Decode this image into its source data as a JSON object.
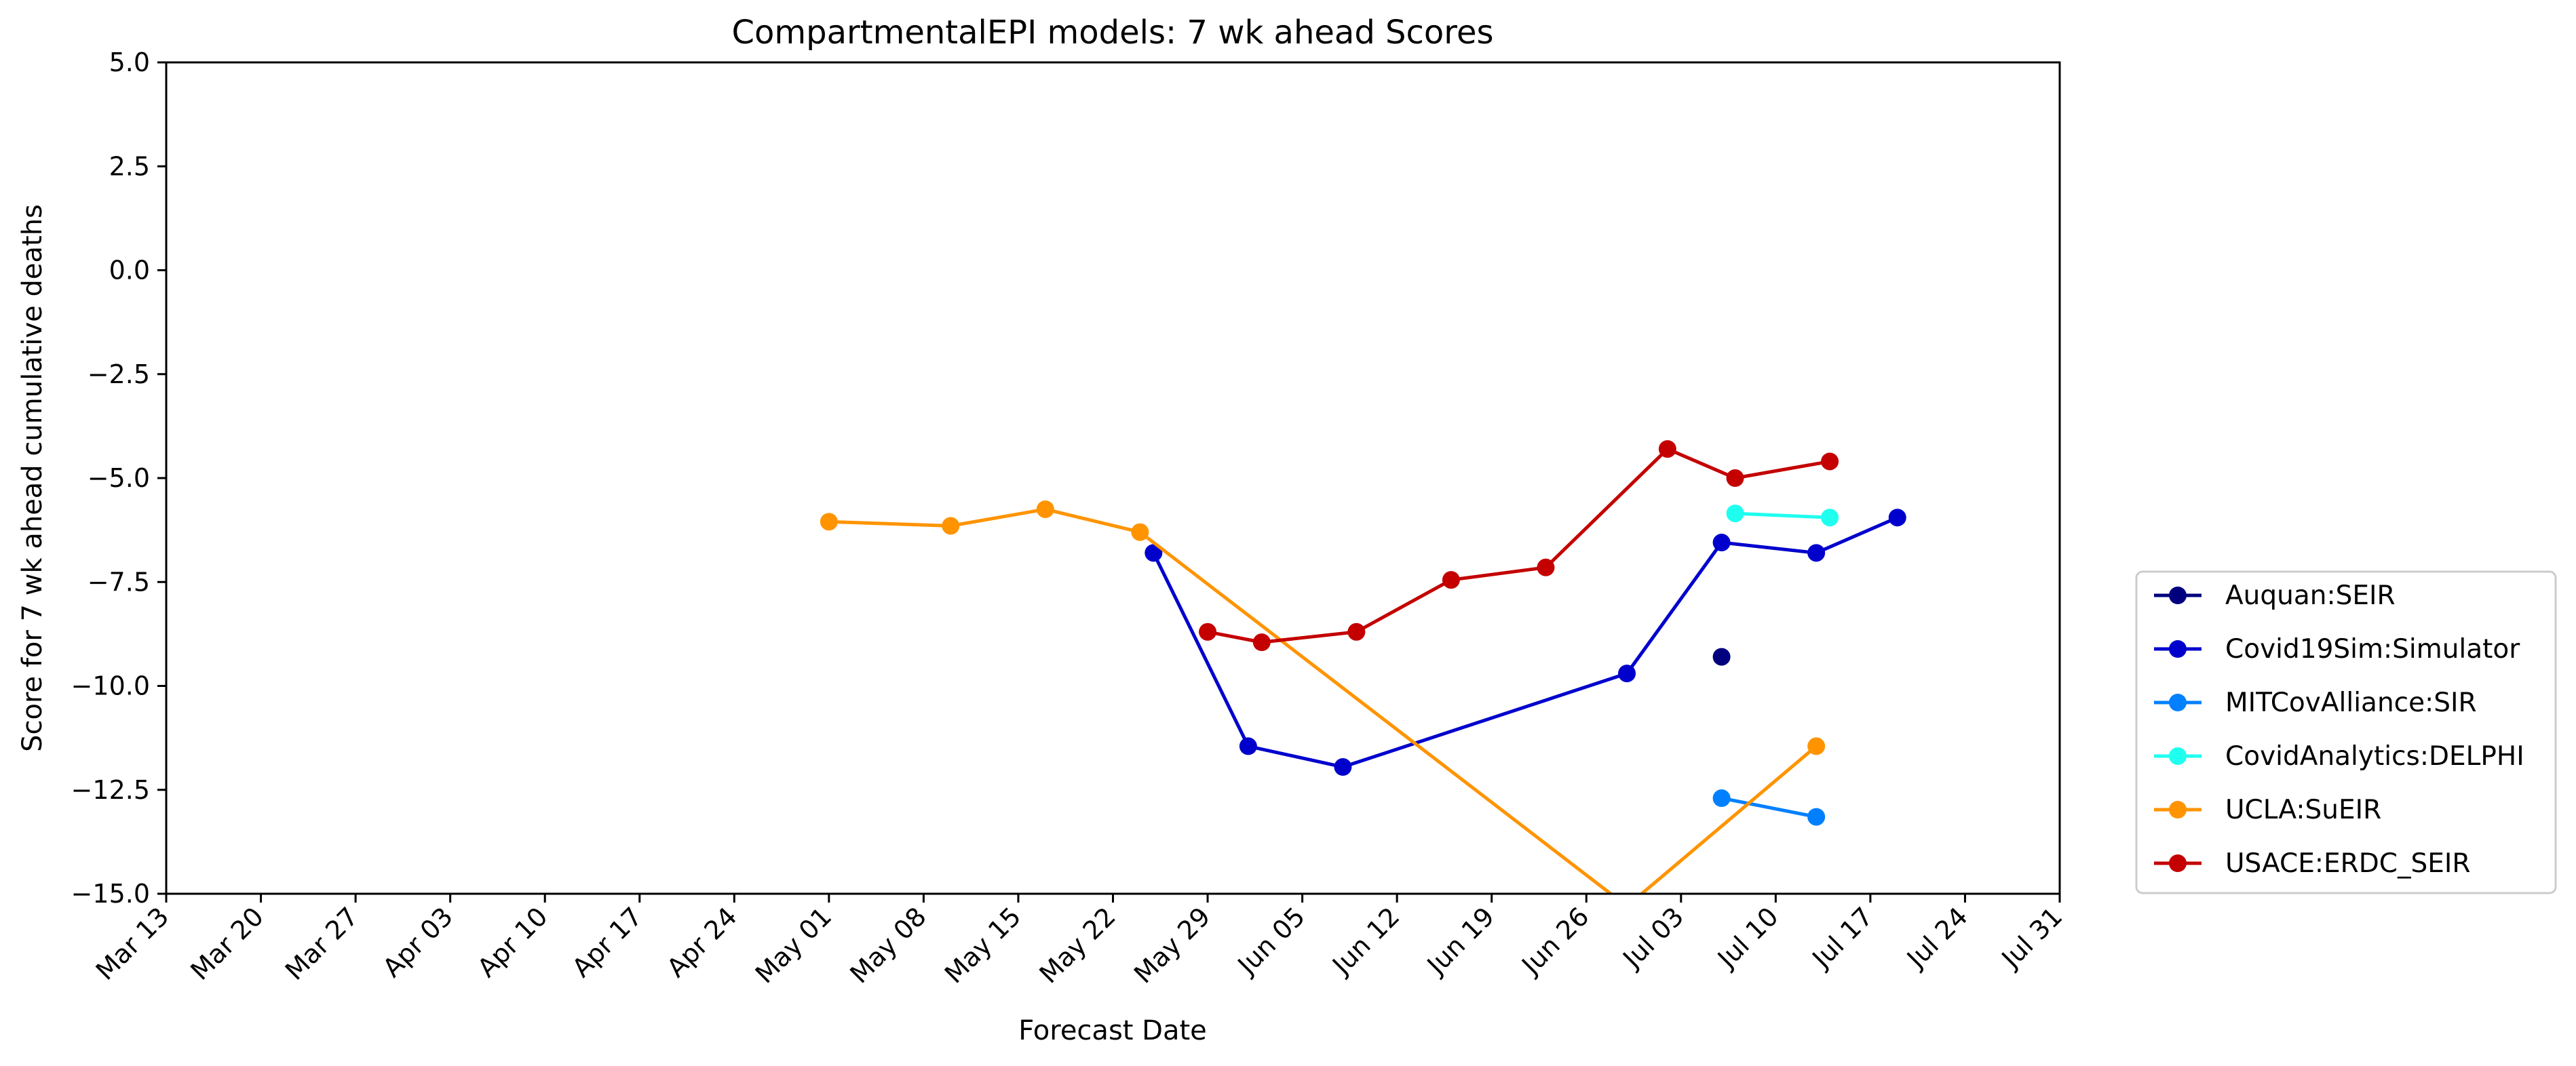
{
  "chart_data": {
    "type": "line",
    "title": "CompartmentalEPI models: 7 wk ahead Scores",
    "xlabel": "Forecast Date",
    "ylabel": "Score for 7 wk ahead cumulative deaths",
    "xlim": [
      "2020-03-13",
      "2020-07-31"
    ],
    "ylim": [
      -15.0,
      5.0
    ],
    "x_ticks": [
      "2020-03-13",
      "2020-03-20",
      "2020-03-27",
      "2020-04-03",
      "2020-04-10",
      "2020-04-17",
      "2020-04-24",
      "2020-05-01",
      "2020-05-08",
      "2020-05-15",
      "2020-05-22",
      "2020-05-29",
      "2020-06-05",
      "2020-06-12",
      "2020-06-19",
      "2020-06-26",
      "2020-07-03",
      "2020-07-10",
      "2020-07-17",
      "2020-07-24",
      "2020-07-31"
    ],
    "x_tick_labels": [
      "Mar 13",
      "Mar 20",
      "Mar 27",
      "Apr 03",
      "Apr 10",
      "Apr 17",
      "Apr 24",
      "May 01",
      "May 08",
      "May 15",
      "May 22",
      "May 29",
      "Jun 05",
      "Jun 12",
      "Jun 19",
      "Jun 26",
      "Jul 03",
      "Jul 10",
      "Jul 17",
      "Jul 24",
      "Jul 31"
    ],
    "y_ticks": [
      5.0,
      2.5,
      0.0,
      -2.5,
      -5.0,
      -7.5,
      -10.0,
      -12.5,
      -15.0
    ],
    "y_tick_labels": [
      "5.0",
      "2.5",
      "0.0",
      "−2.5",
      "−5.0",
      "−7.5",
      "−10.0",
      "−12.5",
      "−15.0"
    ],
    "grid": false,
    "legend_position": "right",
    "series": [
      {
        "name": "Auquan:SEIR",
        "color": "#00007f",
        "x": [
          "2020-07-06"
        ],
        "y": [
          -9.3
        ]
      },
      {
        "name": "Covid19Sim:Simulator",
        "color": "#0000cd",
        "x": [
          "2020-05-25",
          "2020-06-01",
          "2020-06-08",
          "2020-06-29",
          "2020-07-06",
          "2020-07-13",
          "2020-07-19"
        ],
        "y": [
          -6.8,
          -11.45,
          -11.95,
          -9.7,
          -6.55,
          -6.8,
          -5.95
        ]
      },
      {
        "name": "MITCovAlliance:SIR",
        "color": "#0080ff",
        "x": [
          "2020-07-06",
          "2020-07-13"
        ],
        "y": [
          -12.7,
          -13.15
        ]
      },
      {
        "name": "CovidAnalytics:DELPHI",
        "color": "#1ffff0",
        "x": [
          "2020-07-07",
          "2020-07-14"
        ],
        "y": [
          -5.85,
          -5.95
        ]
      },
      {
        "name": "UCLA:SuEIR",
        "color": "#ff9400",
        "x": [
          "2020-05-01",
          "2020-05-10",
          "2020-05-17",
          "2020-05-24",
          "2020-06-29",
          "2020-07-13"
        ],
        "y": [
          -6.05,
          -6.15,
          -5.75,
          -6.3,
          -15.3,
          -11.45
        ]
      },
      {
        "name": "USACE:ERDC_SEIR",
        "color": "#c40000",
        "x": [
          "2020-05-29",
          "2020-06-02",
          "2020-06-09",
          "2020-06-16",
          "2020-06-23",
          "2020-07-02",
          "2020-07-07",
          "2020-07-14"
        ],
        "y": [
          -8.7,
          -8.95,
          -8.7,
          -7.45,
          -7.15,
          -4.3,
          -5.0,
          -4.6
        ]
      }
    ]
  }
}
